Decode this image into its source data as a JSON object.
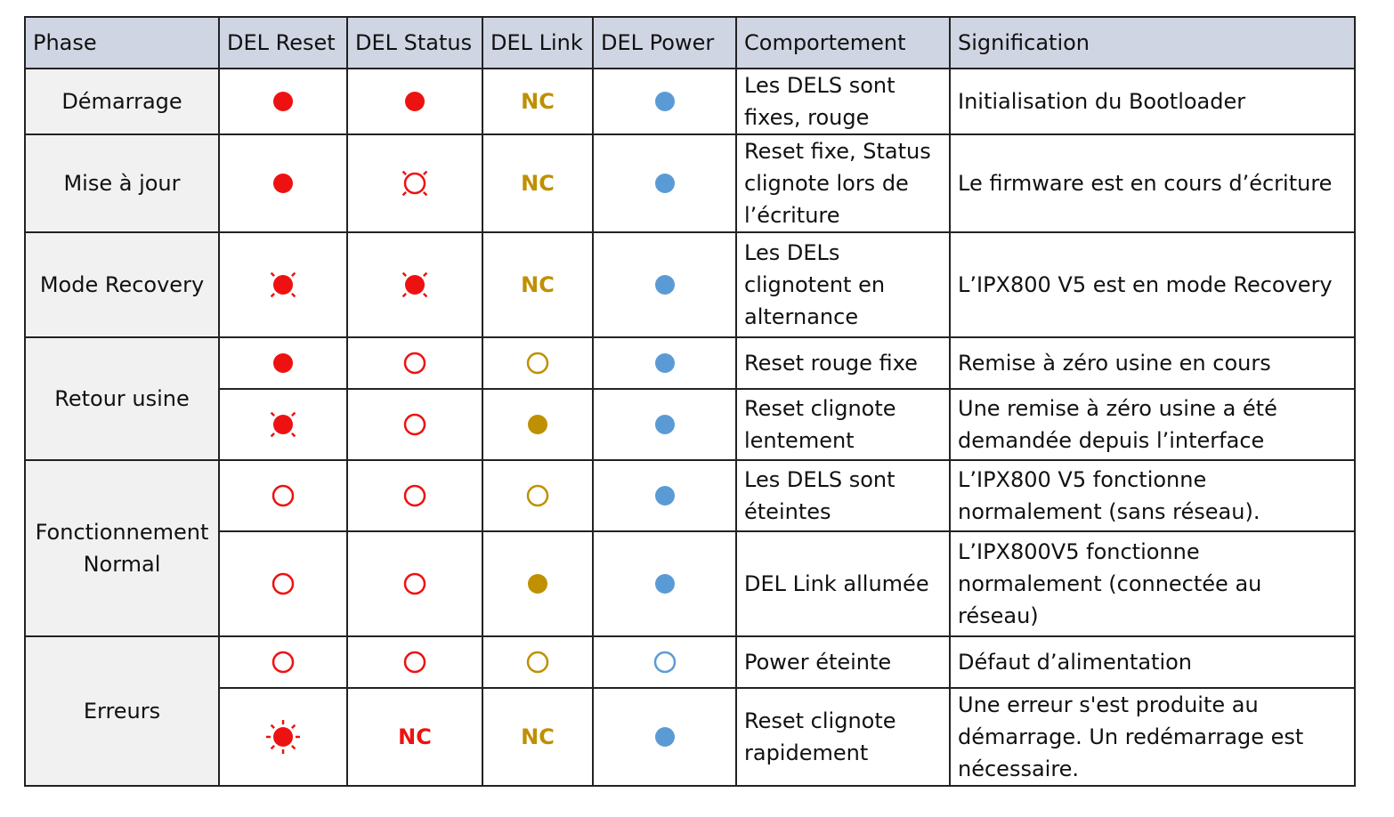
{
  "colors": {
    "red": "#ee1111",
    "blue": "#5b9bd5",
    "gold": "#bf9000",
    "header_bg": "#cfd5e3",
    "phase_bg": "#f1f1f1"
  },
  "headers": [
    "Phase",
    "DEL Reset",
    "DEL Status",
    "DEL Link",
    "DEL Power",
    "Comportement",
    "Signification"
  ],
  "nc_label": "NC",
  "phases": [
    {
      "label": "Démarrage",
      "rows": 1
    },
    {
      "label": "Mise à jour",
      "rows": 1
    },
    {
      "label": "Mode Recovery",
      "rows": 1
    },
    {
      "label": "Retour usine",
      "rows": 2
    },
    {
      "label": "Fonctionnement Normal",
      "rows": 2
    },
    {
      "label": "Erreurs",
      "rows": 2
    }
  ],
  "rows": [
    {
      "reset": "red-solid",
      "status": "red-solid",
      "link": "nc-gold",
      "power": "blue-solid",
      "comportement": "Les DELS sont fixes, rouge",
      "signification": "Initialisation du Bootloader"
    },
    {
      "reset": "red-solid",
      "status": "red-outline-blink",
      "link": "nc-gold",
      "power": "blue-solid",
      "comportement": "Reset fixe, Status clignote lors de l’écriture",
      "signification": "Le firmware est en cours d’écriture"
    },
    {
      "reset": "red-solid-blink",
      "status": "red-solid-blink",
      "link": "nc-gold",
      "power": "blue-solid",
      "comportement": "Les DELs clignotent en alternance",
      "signification": "L’IPX800 V5 est en mode Recovery"
    },
    {
      "reset": "red-solid",
      "status": "red-outline",
      "link": "gold-outline",
      "power": "blue-solid",
      "comportement": "Reset rouge fixe",
      "signification": "Remise à zéro usine en cours"
    },
    {
      "reset": "red-solid-blink",
      "status": "red-outline",
      "link": "gold-solid",
      "power": "blue-solid",
      "comportement": "Reset clignote lentement",
      "signification": "Une remise à zéro usine a été demandée depuis l’interface"
    },
    {
      "reset": "red-outline",
      "status": "red-outline",
      "link": "gold-outline",
      "power": "blue-solid",
      "comportement": "Les DELS sont éteintes",
      "signification": "L’IPX800 V5 fonctionne normalement (sans réseau)."
    },
    {
      "reset": "red-outline",
      "status": "red-outline",
      "link": "gold-solid",
      "power": "blue-solid",
      "comportement": "DEL Link allumée",
      "signification": "L’IPX800V5 fonctionne normalement (connectée au réseau)"
    },
    {
      "reset": "red-outline",
      "status": "red-outline",
      "link": "gold-outline",
      "power": "blue-outline",
      "comportement": "Power éteinte",
      "signification": "Défaut d’alimentation"
    },
    {
      "reset": "red-solid-fastblink",
      "status": "nc-red",
      "link": "nc-gold",
      "power": "blue-solid",
      "comportement": "Reset clignote rapidement",
      "signification": "Une erreur s'est produite au démarrage. Un redémarrage est nécessaire."
    }
  ]
}
